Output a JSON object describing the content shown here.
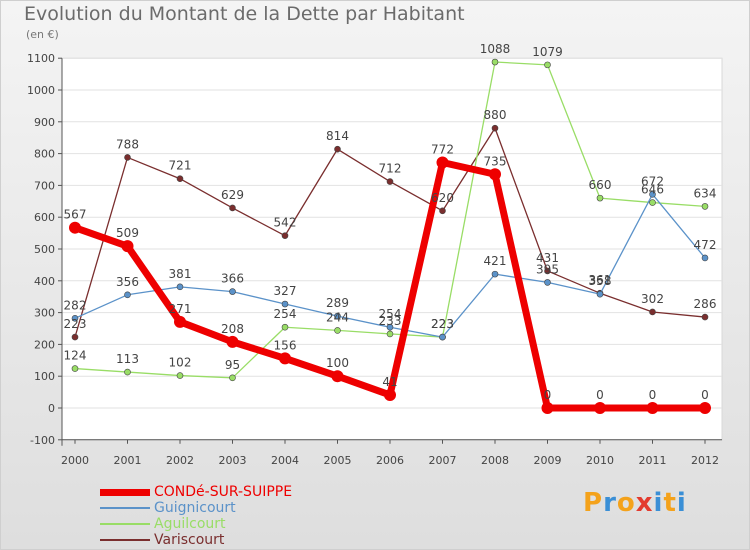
{
  "header": {
    "title": "Evolution du Montant de la Dette par Habitant",
    "unit": "(en €)"
  },
  "logo": {
    "text": "Proxiti",
    "colors": [
      "#f4a21b",
      "#3a8fd6",
      "#f4a21b",
      "#e33b2f",
      "#3a8fd6",
      "#f4a21b",
      "#3a8fd6"
    ]
  },
  "chart_data": {
    "type": "line",
    "title": "Evolution du Montant de la Dette par Habitant",
    "xlabel": "",
    "ylabel": "(en €)",
    "x": [
      "2000",
      "2001",
      "2002",
      "2003",
      "2004",
      "2005",
      "2006",
      "2007",
      "2008",
      "2009",
      "2010",
      "2011",
      "2012"
    ],
    "ylim": [
      -100,
      1100
    ],
    "yticks": [
      -100,
      0,
      100,
      200,
      300,
      400,
      500,
      600,
      700,
      800,
      900,
      1000,
      1100
    ],
    "grid": "horizontal",
    "legend_position": "bottom-left",
    "series": [
      {
        "name": "CONDé-SUR-SUIPPE",
        "color": "#ee0000",
        "values": [
          567,
          509,
          271,
          208,
          156,
          100,
          41,
          772,
          735,
          0,
          0,
          0,
          0
        ]
      },
      {
        "name": "Guignicourt",
        "color": "#5b92c9",
        "values": [
          282,
          356,
          381,
          366,
          327,
          289,
          254,
          223,
          421,
          395,
          358,
          672,
          472
        ]
      },
      {
        "name": "Aguilcourt",
        "color": "#99dd66",
        "values": [
          124,
          113,
          102,
          95,
          254,
          244,
          233,
          223,
          1088,
          1079,
          660,
          646,
          634
        ]
      },
      {
        "name": "Variscourt",
        "color": "#7a2e2e",
        "values": [
          223,
          788,
          721,
          629,
          542,
          814,
          712,
          620,
          880,
          431,
          361,
          302,
          286
        ]
      }
    ]
  }
}
